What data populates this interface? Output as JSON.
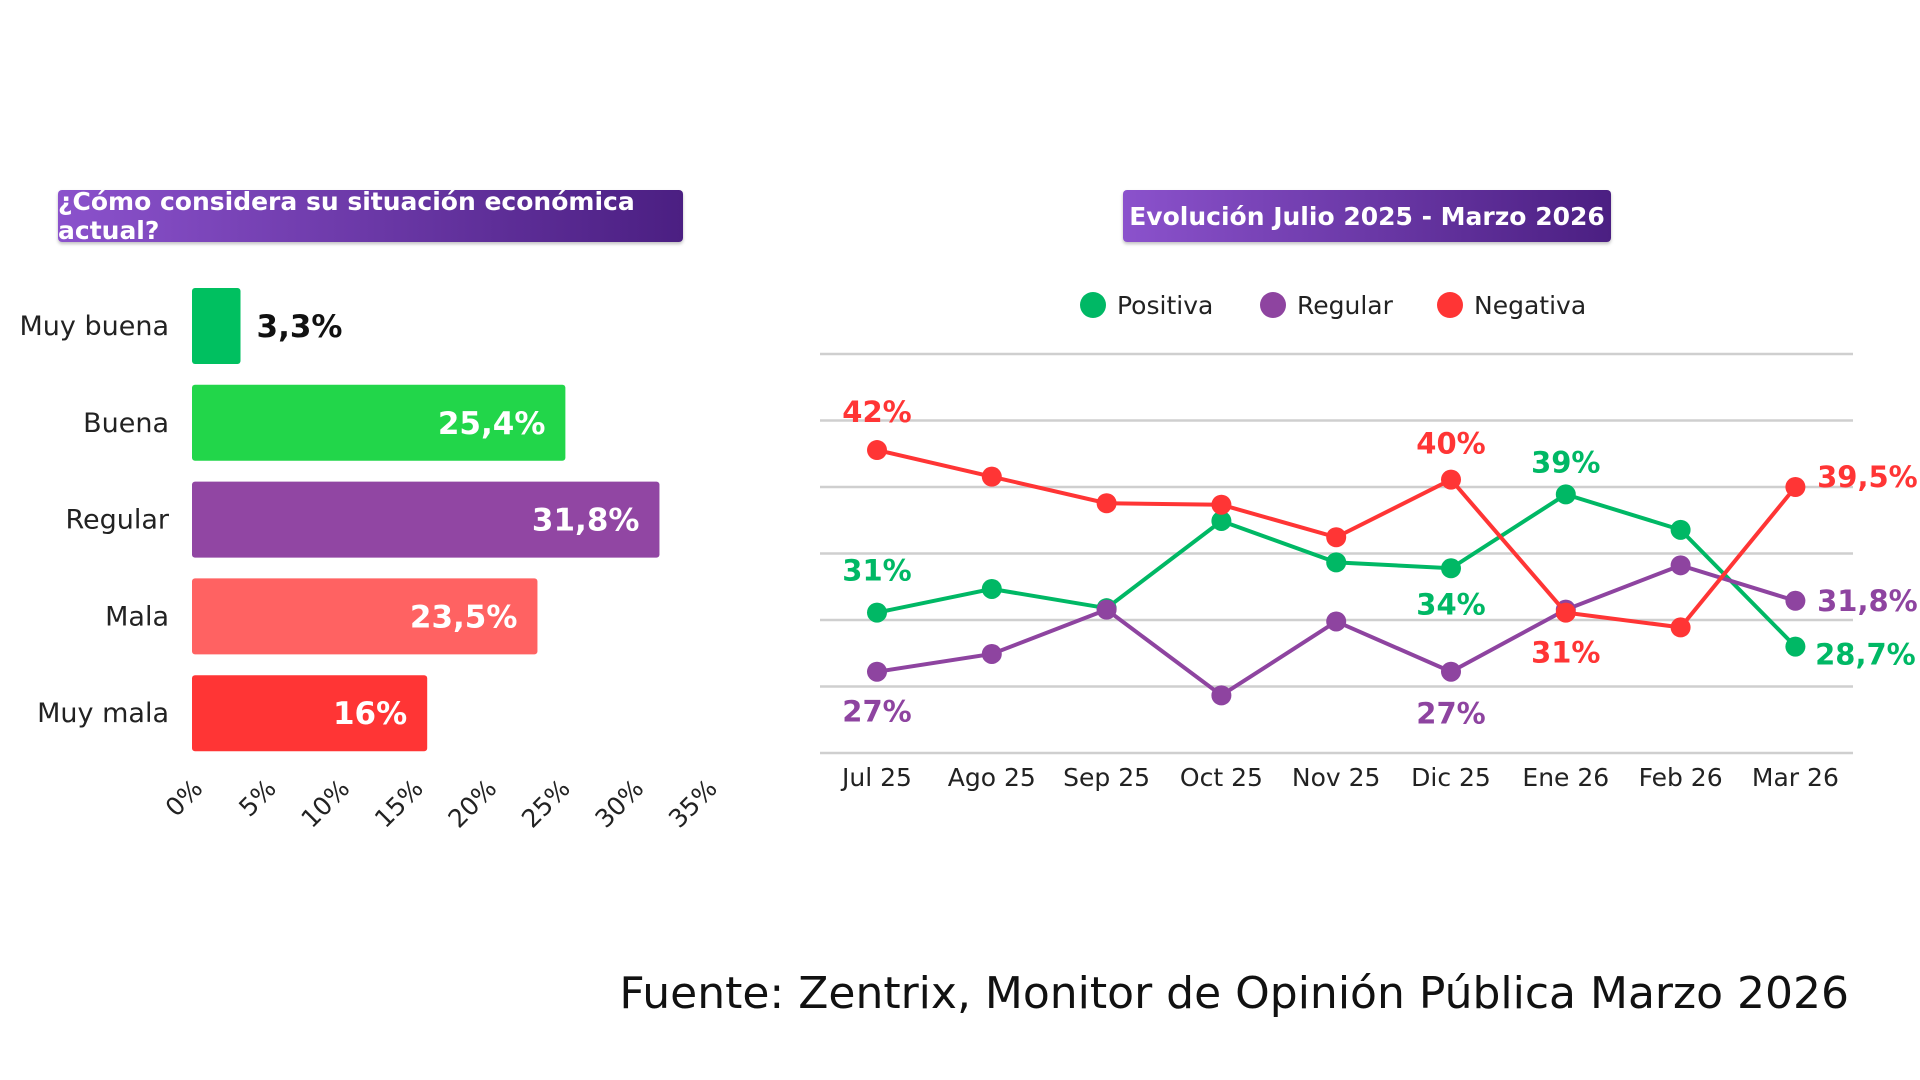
{
  "chart_data": [
    {
      "type": "bar",
      "orientation": "horizontal",
      "title": "¿Cómo considera su situación económica actual?",
      "categories": [
        "Muy buena",
        "Buena",
        "Regular",
        "Mala",
        "Muy mala"
      ],
      "values": [
        3.3,
        25.4,
        31.8,
        23.5,
        16
      ],
      "value_labels": [
        "3,3%",
        "25,4%",
        "31,8%",
        "23,5%",
        "16%"
      ],
      "colors": [
        "#00c060",
        "#22d64a",
        "#9146a3",
        "#ff6262",
        "#ff3535"
      ],
      "xticks": [
        "0%",
        "5%",
        "10%",
        "15%",
        "20%",
        "25%",
        "30%",
        "35%"
      ],
      "xlim": [
        0,
        35
      ],
      "grid": false
    },
    {
      "type": "line",
      "title": "Evolución Julio 2025 - Marzo 2026",
      "categories": [
        "Jul 25",
        "Ago 25",
        "Sep 25",
        "Oct 25",
        "Nov 25",
        "Dic 25",
        "Ene 26",
        "Feb 26",
        "Mar 26"
      ],
      "ylim": [
        21.5,
        48.5
      ],
      "grid": true,
      "legend": "top-center",
      "series": [
        {
          "name": "Positiva",
          "color": "#00b865",
          "values": [
            31,
            32.6,
            31.3,
            37.2,
            34.4,
            34,
            39,
            36.6,
            28.7
          ],
          "labels": {
            "0": "31%",
            "5": "34%",
            "6": "39%",
            "8": "28,7%"
          }
        },
        {
          "name": "Regular",
          "color": "#8e44a0",
          "values": [
            27,
            28.2,
            31.2,
            25.4,
            30.4,
            27,
            31.2,
            34.2,
            31.8
          ],
          "labels": {
            "0": "27%",
            "5": "27%",
            "8": "31,8%"
          }
        },
        {
          "name": "Negativa",
          "color": "#ff3535",
          "values": [
            42,
            40.2,
            38.4,
            38.3,
            36.1,
            40,
            31,
            30,
            39.5
          ],
          "labels": {
            "0": "42%",
            "5": "40%",
            "6": "31%",
            "8": "39,5%"
          }
        }
      ]
    }
  ],
  "source": "Fuente: Zentrix, Monitor de Opinión Pública Marzo 2026"
}
